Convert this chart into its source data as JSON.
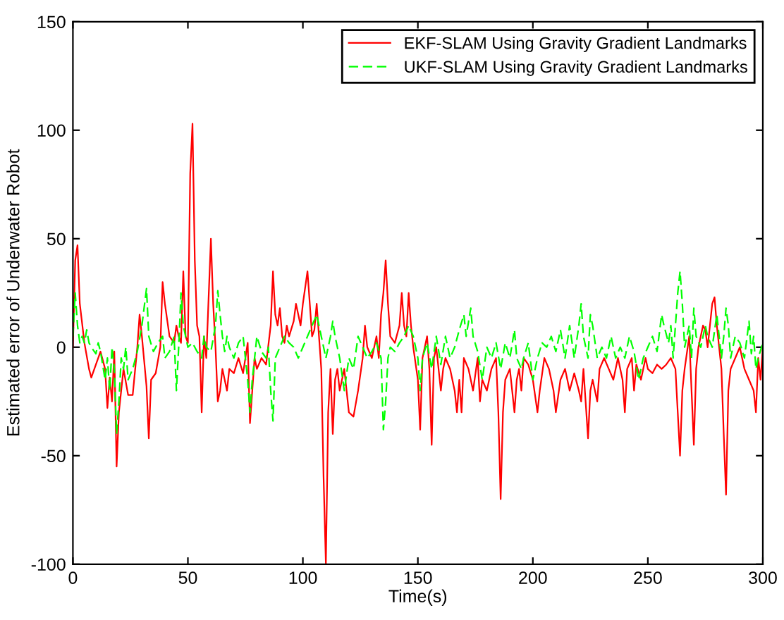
{
  "chart_data": {
    "type": "line",
    "xlabel": "Time(s)",
    "ylabel": "Estimated error of Underwater Robot",
    "xlim": [
      0,
      300
    ],
    "ylim": [
      -100,
      150
    ],
    "xticks": [
      0,
      50,
      100,
      150,
      200,
      250,
      300
    ],
    "yticks": [
      -100,
      -50,
      0,
      50,
      100,
      150
    ],
    "grid": false,
    "legend": "top right",
    "series": [
      {
        "name": "EKF-SLAM Using Gravity Gradient Landmarks",
        "color": "#ff0000",
        "line_style": "solid",
        "x": [
          0,
          1,
          2,
          3,
          5,
          7,
          8,
          10,
          12,
          14,
          15,
          16,
          17,
          18,
          19,
          20,
          22,
          24,
          26,
          28,
          29,
          30,
          32,
          33,
          34,
          36,
          38,
          39,
          40,
          42,
          44,
          45,
          46,
          47,
          48,
          49,
          50,
          51,
          52,
          53,
          54,
          55,
          56,
          57,
          58,
          60,
          61,
          62,
          63,
          64,
          65,
          66,
          67,
          68,
          70,
          72,
          74,
          76,
          77,
          78,
          79,
          80,
          82,
          84,
          86,
          87,
          88,
          89,
          90,
          91,
          92,
          93,
          94,
          96,
          97,
          98,
          99,
          100,
          102,
          103,
          104,
          105,
          106,
          107,
          108,
          109,
          110,
          111,
          112,
          113,
          114,
          115,
          116,
          118,
          120,
          122,
          124,
          126,
          127,
          128,
          130,
          132,
          133,
          134,
          135,
          136,
          137,
          138,
          140,
          142,
          143,
          144,
          145,
          146,
          147,
          148,
          150,
          151,
          152,
          154,
          155,
          156,
          157,
          158,
          160,
          161,
          162,
          164,
          166,
          167,
          168,
          169,
          170,
          172,
          174,
          176,
          177,
          178,
          180,
          182,
          184,
          185,
          186,
          187,
          188,
          190,
          192,
          193,
          194,
          195,
          196,
          198,
          200,
          202,
          203,
          205,
          207,
          209,
          210,
          212,
          214,
          216,
          218,
          220,
          221,
          222,
          224,
          225,
          226,
          228,
          229,
          231,
          233,
          235,
          237,
          239,
          240,
          241,
          243,
          244,
          245,
          247,
          249,
          250,
          252,
          254,
          256,
          258,
          260,
          262,
          263,
          264,
          265,
          266,
          268,
          269,
          270,
          271,
          272,
          274,
          275,
          276,
          277,
          278,
          279,
          280,
          281,
          282,
          283,
          284,
          285,
          286,
          288,
          290,
          291,
          292,
          294,
          296,
          297,
          298,
          299,
          300
        ],
        "values": [
          0,
          40,
          47,
          20,
          2,
          -10,
          -14,
          -8,
          -2,
          -10,
          -28,
          -14,
          -25,
          -2,
          -55,
          -30,
          -10,
          -22,
          -22,
          0,
          15,
          5,
          -18,
          -42,
          -15,
          -12,
          0,
          30,
          20,
          5,
          2,
          10,
          5,
          2,
          35,
          5,
          2,
          80,
          103,
          40,
          10,
          5,
          -30,
          5,
          -5,
          50,
          20,
          0,
          -25,
          -20,
          -10,
          -15,
          -20,
          -10,
          -12,
          -5,
          -12,
          2,
          -35,
          -20,
          -5,
          -10,
          -5,
          -8,
          10,
          35,
          15,
          10,
          18,
          5,
          2,
          10,
          5,
          12,
          20,
          15,
          10,
          20,
          35,
          20,
          5,
          8,
          20,
          5,
          -10,
          -60,
          -100,
          -30,
          -10,
          -40,
          -15,
          -10,
          -20,
          -10,
          -30,
          -32,
          -20,
          -5,
          10,
          0,
          -5,
          5,
          -5,
          15,
          25,
          40,
          20,
          5,
          2,
          10,
          25,
          10,
          5,
          25,
          10,
          0,
          -15,
          -38,
          -5,
          5,
          -10,
          -45,
          -5,
          0,
          -20,
          -10,
          -5,
          -10,
          -20,
          -30,
          -15,
          -30,
          -5,
          -10,
          -20,
          -5,
          -25,
          -15,
          -20,
          -10,
          -5,
          -30,
          -70,
          -30,
          -15,
          -10,
          -30,
          -15,
          -10,
          -20,
          -5,
          -8,
          -15,
          -30,
          -20,
          -5,
          -10,
          -20,
          -30,
          -15,
          -10,
          -20,
          -12,
          -20,
          -25,
          -10,
          -42,
          -20,
          -15,
          -25,
          -10,
          -5,
          -10,
          -15,
          -5,
          -15,
          -30,
          -10,
          -5,
          -20,
          -8,
          -15,
          -5,
          -10,
          -12,
          -8,
          -10,
          -8,
          -5,
          -10,
          -30,
          -50,
          -20,
          -10,
          5,
          -20,
          -45,
          -10,
          0,
          10,
          8,
          0,
          10,
          20,
          23,
          10,
          0,
          -10,
          -40,
          -68,
          -20,
          -10,
          -5,
          0,
          -5,
          -10,
          -15,
          -20,
          -30,
          -5,
          -15,
          0
        ]
      },
      {
        "name": "UKF-SLAM Using Gravity Gradient Landmarks",
        "color": "#00ff00",
        "line_style": "dashed",
        "x": [
          0,
          1,
          2,
          3,
          4,
          5,
          6,
          7,
          8,
          10,
          11,
          12,
          14,
          15,
          16,
          17,
          18,
          19,
          20,
          21,
          22,
          23,
          24,
          26,
          28,
          30,
          32,
          33,
          35,
          37,
          39,
          40,
          42,
          44,
          45,
          46,
          47,
          48,
          50,
          52,
          54,
          56,
          57,
          58,
          60,
          62,
          63,
          64,
          65,
          66,
          67,
          68,
          70,
          72,
          74,
          76,
          77,
          78,
          79,
          80,
          82,
          84,
          85,
          86,
          87,
          88,
          90,
          92,
          94,
          96,
          98,
          100,
          102,
          104,
          106,
          108,
          110,
          112,
          113,
          114,
          116,
          118,
          120,
          122,
          124,
          126,
          128,
          130,
          132,
          134,
          135,
          136,
          137,
          138,
          140,
          142,
          144,
          146,
          148,
          150,
          151,
          152,
          154,
          156,
          158,
          160,
          162,
          164,
          166,
          168,
          170,
          171,
          173,
          174,
          176,
          178,
          180,
          182,
          184,
          186,
          188,
          190,
          192,
          193,
          195,
          196,
          198,
          200,
          202,
          204,
          206,
          208,
          210,
          212,
          214,
          216,
          218,
          220,
          221,
          222,
          224,
          225,
          226,
          228,
          230,
          232,
          234,
          236,
          238,
          240,
          242,
          244,
          246,
          248,
          250,
          252,
          254,
          256,
          257,
          259,
          260,
          261,
          263,
          264,
          265,
          266,
          268,
          269,
          270,
          271,
          273,
          275,
          276,
          278,
          280,
          282,
          283,
          284,
          285,
          286,
          288,
          290,
          292,
          294,
          295,
          296,
          297,
          298,
          300
        ],
        "values": [
          5,
          25,
          10,
          2,
          5,
          2,
          8,
          2,
          0,
          -3,
          2,
          -2,
          -15,
          -5,
          -20,
          0,
          -10,
          -40,
          -25,
          -5,
          -10,
          0,
          -15,
          -10,
          -2,
          10,
          27,
          5,
          -2,
          2,
          5,
          -5,
          -2,
          5,
          -20,
          0,
          25,
          10,
          0,
          2,
          -2,
          -5,
          5,
          0,
          -2,
          10,
          26,
          15,
          5,
          -2,
          5,
          0,
          -5,
          2,
          5,
          -15,
          -30,
          -15,
          -5,
          5,
          -2,
          -5,
          0,
          -20,
          -34,
          -5,
          0,
          5,
          2,
          0,
          -5,
          0,
          5,
          10,
          15,
          5,
          -5,
          5,
          12,
          5,
          -5,
          -20,
          -5,
          -10,
          5,
          0,
          -5,
          -2,
          2,
          -5,
          -38,
          -25,
          -5,
          0,
          -2,
          2,
          5,
          10,
          5,
          -5,
          -20,
          -5,
          2,
          -10,
          5,
          -8,
          5,
          -5,
          0,
          8,
          15,
          5,
          18,
          5,
          -2,
          -15,
          0,
          -5,
          2,
          -10,
          2,
          -5,
          8,
          -5,
          -10,
          -5,
          2,
          -15,
          -5,
          2,
          0,
          5,
          -2,
          8,
          -5,
          10,
          -5,
          10,
          20,
          5,
          -5,
          15,
          10,
          -5,
          0,
          -5,
          5,
          -5,
          0,
          -5,
          5,
          -2,
          -15,
          -5,
          0,
          5,
          -2,
          15,
          10,
          2,
          10,
          -5,
          25,
          35,
          20,
          0,
          10,
          -5,
          18,
          5,
          0,
          10,
          5,
          0,
          15,
          -5,
          5,
          18,
          10,
          -5,
          5,
          2,
          -5,
          12,
          -3,
          5,
          -10,
          -5,
          2
        ]
      }
    ]
  }
}
